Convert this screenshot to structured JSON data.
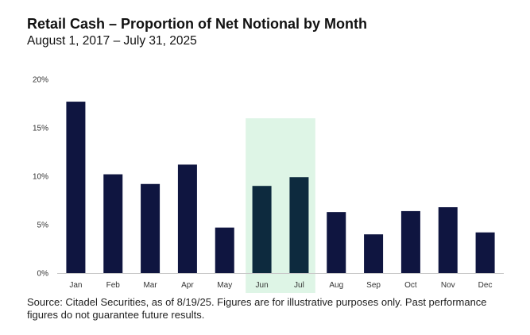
{
  "header": {
    "title": "Retail Cash – Proportion of Net Notional by Month",
    "subtitle": "August 1, 2017 – July 31, 2025"
  },
  "footer": {
    "source": "Source: Citadel Securities, as of 8/19/25. Figures are for illustrative purposes only. Past performance figures do not guarantee future results."
  },
  "chart_data": {
    "type": "bar",
    "title": "Retail Cash – Proportion of Net Notional by Month",
    "subtitle": "August 1, 2017 – July 31, 2025",
    "xlabel": "",
    "ylabel": "",
    "categories": [
      "Jan",
      "Feb",
      "Mar",
      "Apr",
      "May",
      "Jun",
      "Jul",
      "Aug",
      "Sep",
      "Oct",
      "Nov",
      "Dec"
    ],
    "values": [
      17.7,
      10.2,
      9.2,
      11.2,
      4.7,
      9.0,
      9.9,
      6.3,
      4.0,
      6.4,
      6.8,
      4.2
    ],
    "unit": "%",
    "ylim": [
      0,
      20
    ],
    "yticks": [
      0,
      5,
      10,
      15,
      20
    ],
    "ytick_labels": [
      "0%",
      "5%",
      "10%",
      "15%",
      "20%"
    ],
    "grid": false,
    "highlight_categories": [
      "Jun",
      "Jul"
    ],
    "colors": {
      "bar": "#0f1540",
      "bar_highlighted": "#0d2a3e",
      "highlight_band": "#def5e6",
      "baseline": "#c8c8c8"
    }
  }
}
